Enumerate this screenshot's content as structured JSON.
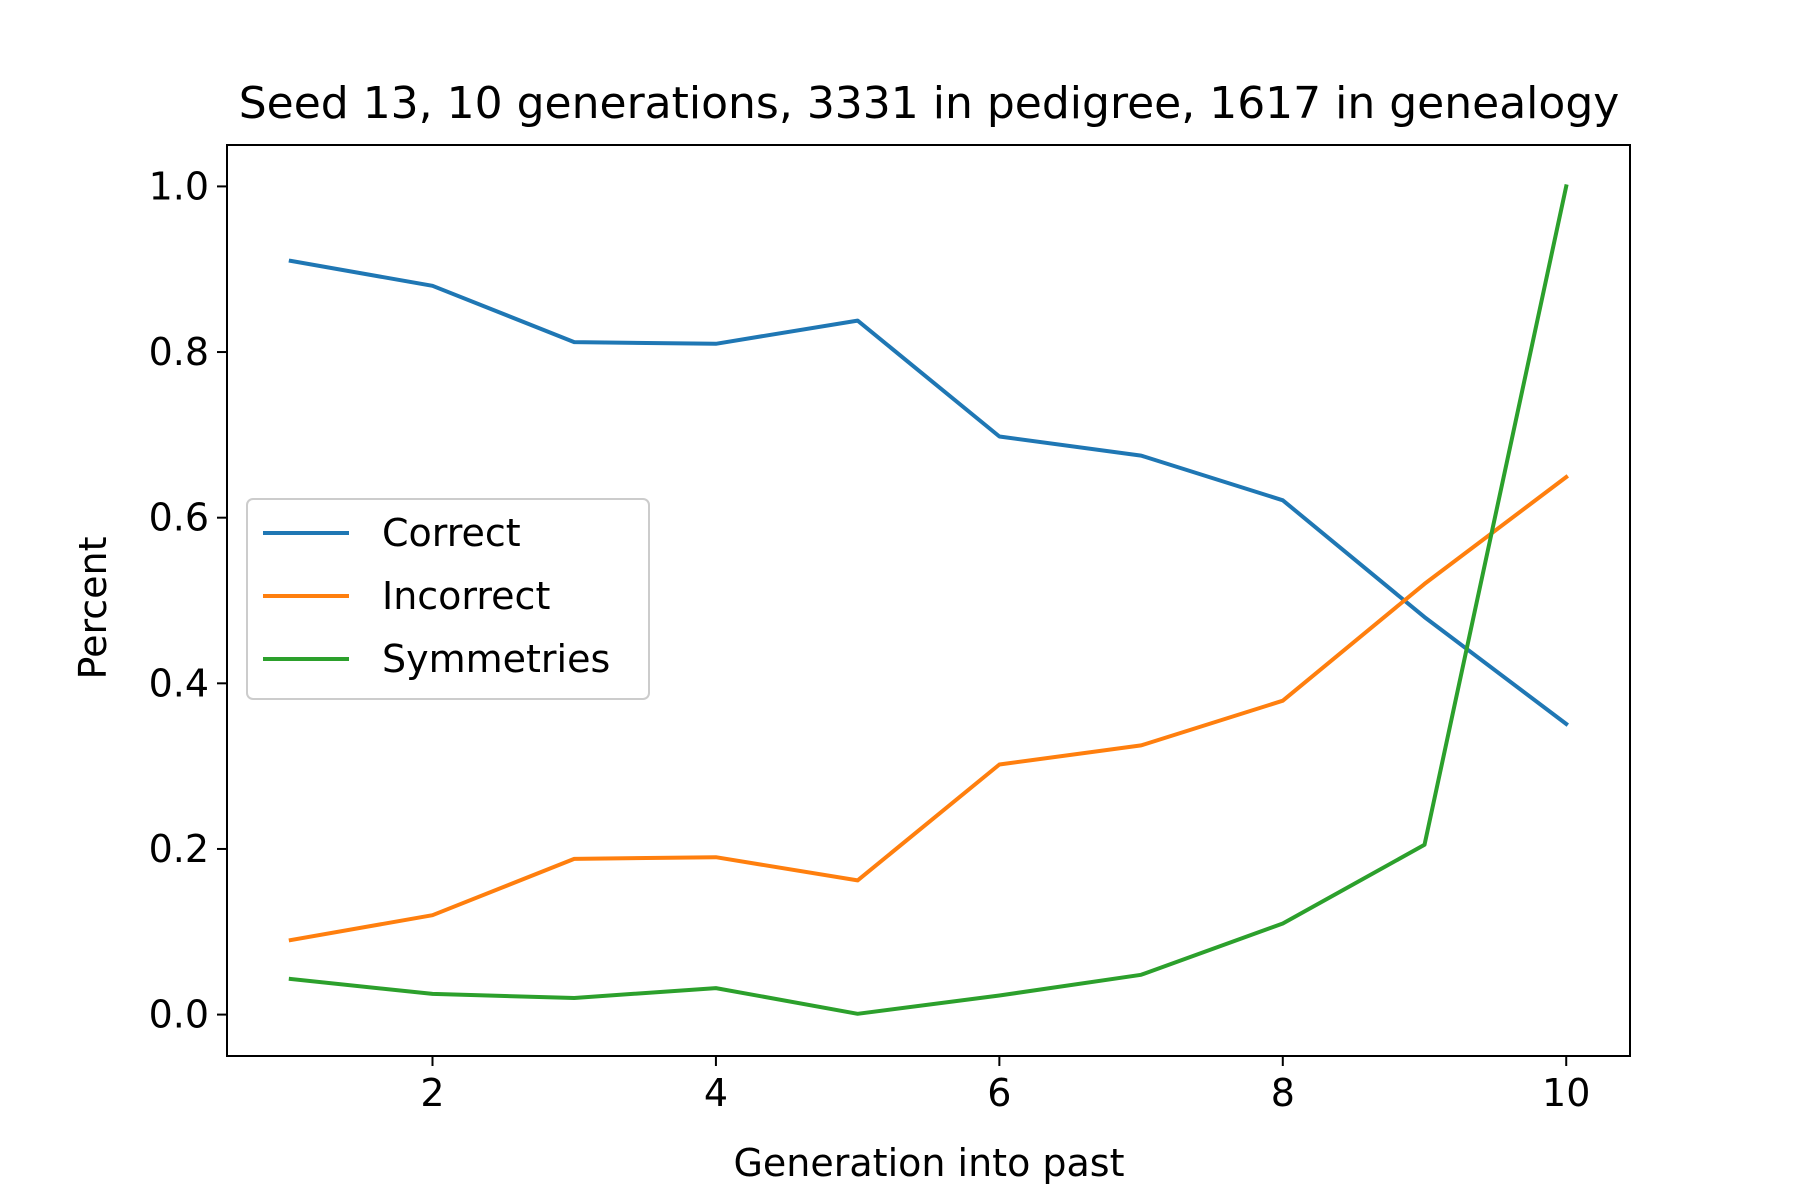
{
  "chart_data": {
    "type": "line",
    "title": "Seed 13, 10 generations,  3331 in pedigree, 1617 in genealogy",
    "xlabel": "Generation into past",
    "ylabel": "Percent",
    "x": [
      1,
      2,
      3,
      4,
      5,
      6,
      7,
      8,
      9,
      10
    ],
    "xlim": [
      0.55,
      10.45
    ],
    "ylim": [
      -0.05,
      1.05
    ],
    "xticks": [
      2,
      4,
      6,
      8,
      10
    ],
    "xtick_labels": [
      "2",
      "4",
      "6",
      "8",
      "10"
    ],
    "yticks": [
      0.0,
      0.2,
      0.4,
      0.6,
      0.8,
      1.0
    ],
    "ytick_labels": [
      "0.0",
      "0.2",
      "0.4",
      "0.6",
      "0.8",
      "1.0"
    ],
    "grid": false,
    "legend_position": "center-left",
    "series": [
      {
        "name": "Correct",
        "color": "#1f77b4",
        "values": [
          0.91,
          0.88,
          0.812,
          0.81,
          0.838,
          0.698,
          0.675,
          0.621,
          0.48,
          0.351
        ]
      },
      {
        "name": "Incorrect",
        "color": "#ff7f0e",
        "values": [
          0.09,
          0.12,
          0.188,
          0.19,
          0.162,
          0.302,
          0.325,
          0.379,
          0.52,
          0.649
        ]
      },
      {
        "name": "Symmetries",
        "color": "#2ca02c",
        "values": [
          0.043,
          0.025,
          0.02,
          0.032,
          0.001,
          0.023,
          0.048,
          0.11,
          0.205,
          1.0
        ]
      }
    ]
  }
}
